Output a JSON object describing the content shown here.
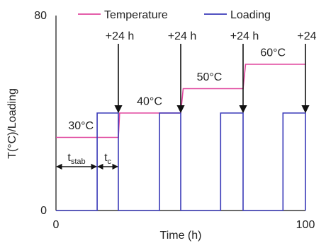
{
  "chart_data": {
    "type": "line",
    "xlabel": "Time (h)",
    "ylabel": "T(°C)/Loading",
    "xlim": [
      0,
      100
    ],
    "ylim": [
      0,
      80
    ],
    "x_ticks": [
      "0",
      "100"
    ],
    "y_ticks": [
      "0",
      "80"
    ],
    "legend_position": "top",
    "series": [
      {
        "name": "Temperature",
        "color": "#e0479e",
        "points": [
          [
            0,
            30
          ],
          [
            16.5,
            30
          ],
          [
            25,
            30
          ],
          [
            25.5,
            40
          ],
          [
            50,
            40
          ],
          [
            51,
            50
          ],
          [
            75,
            50
          ],
          [
            76,
            60
          ],
          [
            100,
            60
          ]
        ]
      },
      {
        "name": "Loading",
        "color": "#3a3ab8",
        "points": [
          [
            0,
            0
          ],
          [
            16.5,
            0
          ],
          [
            16.5,
            40
          ],
          [
            25,
            40
          ],
          [
            25,
            0
          ],
          [
            41.5,
            0
          ],
          [
            41.5,
            40
          ],
          [
            50,
            40
          ],
          [
            50,
            0
          ],
          [
            66,
            0
          ],
          [
            66,
            40
          ],
          [
            75,
            40
          ],
          [
            75,
            0
          ],
          [
            91,
            0
          ],
          [
            91,
            40
          ],
          [
            100,
            40
          ],
          [
            100,
            0
          ]
        ]
      }
    ],
    "annotations": {
      "temperature_labels": [
        {
          "text": "30°C",
          "x": 10,
          "y": 32.5
        },
        {
          "text": "40°C",
          "x": 37.5,
          "y": 42.5
        },
        {
          "text": "50°C",
          "x": 61.5,
          "y": 52.5
        },
        {
          "text": "60°C",
          "x": 87,
          "y": 62.5
        }
      ],
      "arrows": [
        {
          "text": "+24 h",
          "x": 25
        },
        {
          "text": "+24 h",
          "x": 50
        },
        {
          "text": "+24 h",
          "x": 75
        },
        {
          "text": "+24",
          "x": 100
        }
      ],
      "intervals": [
        {
          "main": "t",
          "sub": "stab",
          "x0": 0,
          "x1": 16.5,
          "y": 18
        },
        {
          "main": "t",
          "sub": "c",
          "x0": 16.5,
          "x1": 25,
          "y": 18
        }
      ]
    }
  }
}
